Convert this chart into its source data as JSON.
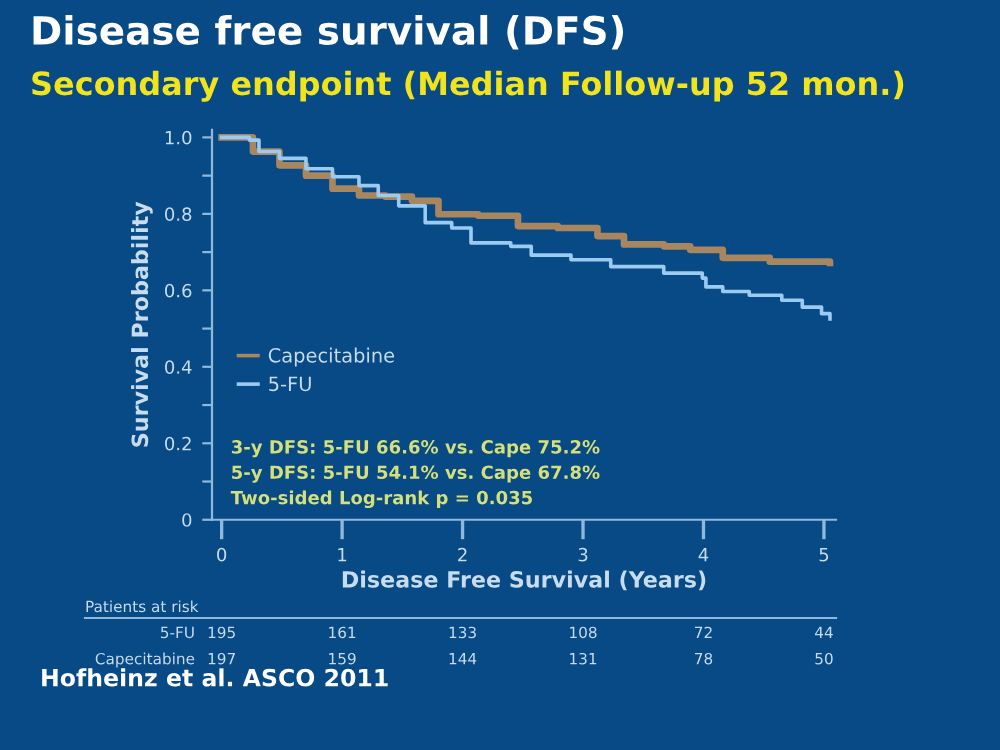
{
  "chart_data": {
    "type": "step",
    "title": "Disease free survival (DFS)",
    "subtitle": "Secondary endpoint (Median Follow-up 52 mon.)",
    "xlabel": "Disease Free Survival (Years)",
    "ylabel": "Survival Probability",
    "xlim": [
      -0.08,
      5.1
    ],
    "xticks": [
      0,
      1,
      2,
      3,
      4,
      5
    ],
    "ylim": [
      0,
      1.02
    ],
    "yticks": [
      {
        "value": 0,
        "label": "0"
      },
      {
        "value": 0.1,
        "label": null
      },
      {
        "value": 0.2,
        "label": "0.2"
      },
      {
        "value": 0.3,
        "label": null
      },
      {
        "value": 0.4,
        "label": "0.4"
      },
      {
        "value": 0.5,
        "label": null
      },
      {
        "value": 0.6,
        "label": "0.6"
      },
      {
        "value": 0.7,
        "label": null
      },
      {
        "value": 0.8,
        "label": "0.8"
      },
      {
        "value": 0.9,
        "label": null
      },
      {
        "value": 1.0,
        "label": "1.0"
      }
    ],
    "grid": false,
    "legend": "bottom left",
    "series": [
      {
        "name": "Capecitabine",
        "color": "#a8865e",
        "x": [
          0,
          0.26,
          0.48,
          0.7,
          0.92,
          1.14,
          1.36,
          1.58,
          1.8,
          2.13,
          2.46,
          2.79,
          3.12,
          3.34,
          3.67,
          3.89,
          4.16,
          4.55,
          5.05
        ],
        "values": [
          1.0,
          0.963,
          0.927,
          0.9,
          0.866,
          0.848,
          0.845,
          0.834,
          0.799,
          0.795,
          0.768,
          0.763,
          0.742,
          0.72,
          0.715,
          0.706,
          0.685,
          0.675,
          0.672
        ]
      },
      {
        "name": "5-FU",
        "color": "#9ccbf2",
        "x": [
          0,
          0.23,
          0.31,
          0.48,
          0.7,
          0.92,
          1.14,
          1.3,
          1.47,
          1.69,
          1.91,
          2.07,
          2.4,
          2.57,
          2.9,
          3.23,
          3.67,
          3.99,
          4.02,
          4.16,
          4.38,
          4.65,
          4.82,
          4.98,
          5.05
        ],
        "values": [
          1.0,
          0.993,
          0.963,
          0.945,
          0.918,
          0.897,
          0.874,
          0.848,
          0.821,
          0.777,
          0.763,
          0.724,
          0.715,
          0.692,
          0.68,
          0.662,
          0.645,
          0.632,
          0.609,
          0.597,
          0.587,
          0.574,
          0.556,
          0.539,
          0.525
        ]
      }
    ],
    "annotations": [
      "3-y DFS: 5-FU 66.6% vs. Cape 75.2%",
      "5-y DFS: 5-FU 54.1% vs. Cape 67.8%",
      "Two-sided Log-rank p = 0.035",
      "Patients at risk",
      "5-FU",
      "195",
      "161",
      "133",
      "108",
      "72",
      "44",
      "Capecitabine",
      "197",
      "159",
      "144",
      "131",
      "78",
      "50",
      "Hofheinz et al. ASCO 2011"
    ]
  }
}
